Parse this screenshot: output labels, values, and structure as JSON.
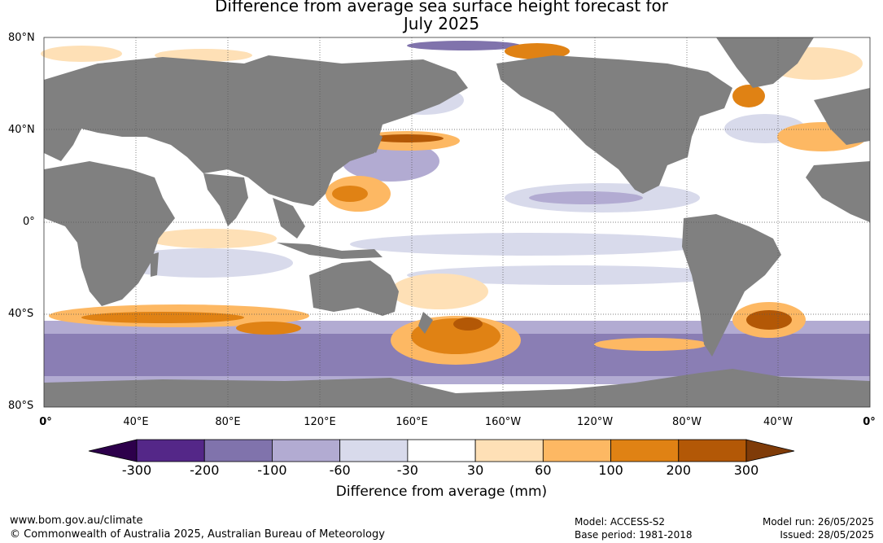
{
  "title": {
    "line1": "Difference from average sea surface height forecast for",
    "line2": "July 2025"
  },
  "map": {
    "lat_labels": [
      "80°N",
      "40°N",
      "0°",
      "40°S",
      "80°S"
    ],
    "lon_labels": [
      "0°",
      "40°E",
      "80°E",
      "120°E",
      "160°E",
      "160°W",
      "120°W",
      "80°W",
      "40°W",
      "0°"
    ],
    "colors": {
      "land": "#808080",
      "ocean_neutral": "#ffffff",
      "gridline": "#555555"
    }
  },
  "colorbar": {
    "tick_labels": [
      "-300",
      "-200",
      "-100",
      "-60",
      "-30",
      "30",
      "60",
      "100",
      "200",
      "300"
    ],
    "colors": [
      "#2d004b",
      "#542788",
      "#8073ac",
      "#b2abd2",
      "#d8daeb",
      "#ffffff",
      "#fee0b6",
      "#fdb863",
      "#e08214",
      "#b35806",
      "#7f3b08"
    ],
    "title": "Difference from average (mm)"
  },
  "footer": {
    "website": "www.bom.gov.au/climate",
    "copyright": "© Commonwealth of Australia 2025, Australian Bureau of Meteorology",
    "model": "Model: ACCESS-S2",
    "base_period": "Base period: 1981-2018",
    "model_run": "Model run: 26/05/2025",
    "issued": "Issued: 28/05/2025"
  }
}
